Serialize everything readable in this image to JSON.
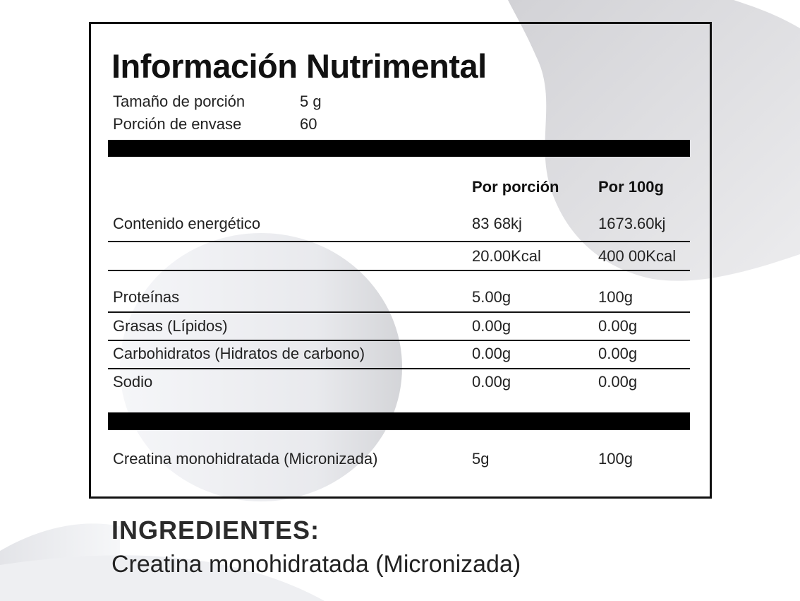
{
  "label": {
    "title": "Información Nutrimental",
    "serving_size_label": "Tamaño de porción",
    "serving_size_value": "5 g",
    "servings_per_container_label": "Porción de envase",
    "servings_per_container_value": "60",
    "col_per_serving": "Por porción",
    "col_per_100g": "Por 100g",
    "energy": {
      "label": "Contenido energético",
      "kj_serving": "83 68kj",
      "kj_100g": "1673.60kj",
      "kcal_serving": "20.00Kcal",
      "kcal_100g": "400 00Kcal"
    },
    "nutrients": [
      {
        "label": "Proteínas",
        "per_serving": "5.00g",
        "per_100g": "100g"
      },
      {
        "label": "Grasas (Lípidos)",
        "per_serving": "0.00g",
        "per_100g": "0.00g"
      },
      {
        "label": "Carbohidratos (Hidratos de carbono)",
        "per_serving": "0.00g",
        "per_100g": "0.00g"
      },
      {
        "label": "Sodio",
        "per_serving": "0.00g",
        "per_100g": "0.00g"
      }
    ],
    "creatine": {
      "label": "Creatina monohidratada (Micronizada)",
      "per_serving": "5g",
      "per_100g": "100g"
    }
  },
  "ingredients": {
    "title": "INGREDIENTES:",
    "text": "Creatina monohidratada (Micronizada)"
  },
  "colors": {
    "border": "#111111",
    "bar": "#000000",
    "background_shape": "#d9d9dc"
  }
}
